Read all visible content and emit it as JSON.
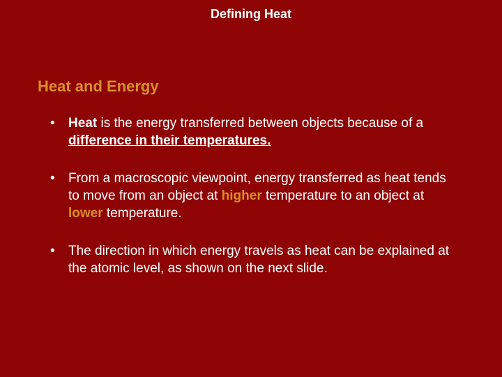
{
  "colors": {
    "background": "#8e0404",
    "title_text": "#ffffff",
    "heading_text": "#d89028",
    "body_text": "#ffffff",
    "accent_text": "#d89028"
  },
  "typography": {
    "title_fontsize": 18,
    "heading_fontsize": 22,
    "body_fontsize": 19,
    "font_family": "Arial"
  },
  "slide": {
    "title": "Defining Heat",
    "heading": "Heat and Energy",
    "bullets": [
      {
        "parts": {
          "heat_word": "Heat",
          "mid1": " is the energy transferred between objects because of a ",
          "diff_phrase": "difference in their temperatures."
        }
      },
      {
        "parts": {
          "lead": "From a macroscopic viewpoint, energy transferred as heat tends to move from an object at ",
          "higher": "higher",
          "mid": " temperature to an object at ",
          "lower": "lower",
          "tail": " temperature."
        }
      },
      {
        "text": "The direction in which energy travels as heat can be explained at the atomic level, as shown on the next slide."
      }
    ]
  }
}
